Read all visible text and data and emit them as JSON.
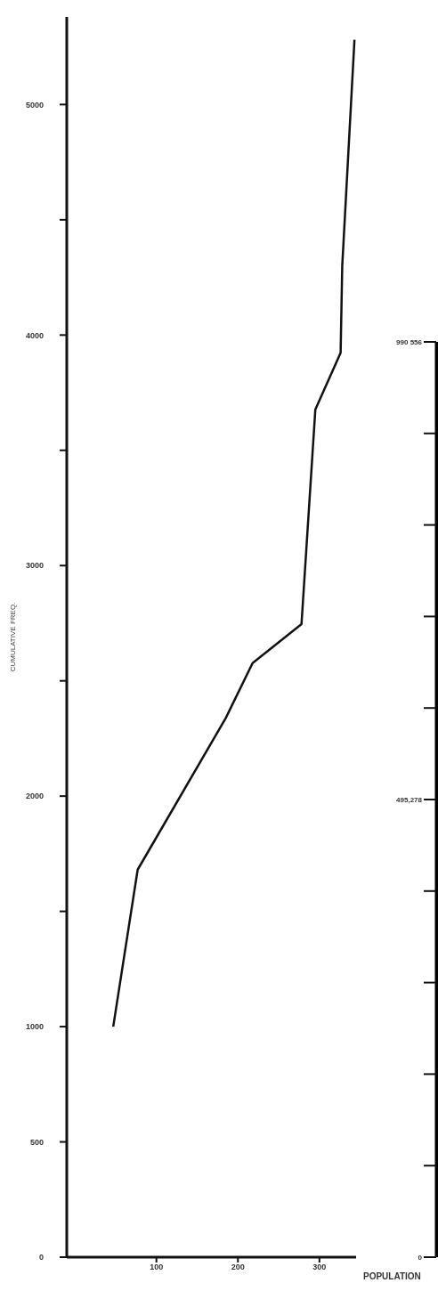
{
  "chart_data": {
    "type": "line",
    "xlabel": "POPULATION",
    "ylabel": "CUMULATIVE FREQ.",
    "x": [
      47,
      77,
      185,
      218,
      278,
      295,
      326,
      328,
      343
    ],
    "series": [
      {
        "color": "#111111",
        "values": [
          1000,
          1681,
          2338,
          2577,
          2746,
          3677,
          3923,
          4300,
          5281
        ]
      }
    ],
    "xlim": [
      -10,
      345
    ],
    "xticks": [
      100,
      200,
      300
    ],
    "ylim": [
      0,
      5380
    ],
    "yticks": [
      0,
      500,
      1000,
      {
        "value": 1500,
        "label": null
      },
      2000,
      {
        "value": 2500,
        "label": null
      },
      3000,
      {
        "value": 3500,
        "label": null
      },
      4000,
      {
        "value": 4500,
        "label": null
      },
      5000
    ],
    "y2lim": [
      0,
      990556
    ],
    "y2ticks": [
      0,
      {
        "value": 495278,
        "label": "495,278"
      },
      {
        "value": 990556,
        "label": "990 556"
      }
    ],
    "grid": false,
    "legend": false,
    "marker": "none",
    "line_style": "solid"
  }
}
